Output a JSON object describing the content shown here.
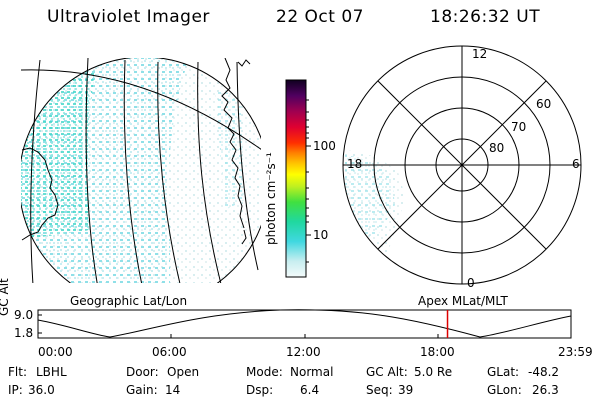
{
  "header": {
    "instrument": "Ultraviolet Imager",
    "date": "22 Oct 07",
    "time": "18:26:32 UT"
  },
  "map": {
    "projection_label": "Geographic Lat/Lon"
  },
  "colorbar": {
    "unit_label": "photon cm⁻²s⁻¹",
    "tick_labels": [
      "100",
      "10"
    ],
    "scale": "log"
  },
  "polar": {
    "label": "Apex MLat/MLT",
    "mlt_labels": {
      "top": "12",
      "left": "18",
      "right": "6",
      "bottom": "0"
    },
    "lat_labels": [
      "60",
      "70",
      "80"
    ]
  },
  "timeline": {
    "y_axis_label": "GC Alt",
    "y_ticks": [
      "9.0",
      "1.8"
    ],
    "x_ticks": [
      "00:00",
      "06:00",
      "12:00",
      "18:00",
      "23:59"
    ],
    "current_time_hours": 18.44,
    "marker_color": "#dd0000"
  },
  "params": {
    "flt_label": "Flt:",
    "flt_value": "LBHL",
    "ip_label": "IP:",
    "ip_value": "36.0",
    "door_label": "Door:",
    "door_value": "Open",
    "gain_label": "Gain:",
    "gain_value": "14",
    "mode_label": "Mode:",
    "mode_value": "Normal",
    "dsp_label": "Dsp:",
    "dsp_value": "6.4",
    "gcalt_label": "GC Alt:",
    "gcalt_value": "5.0 Re",
    "seq_label": "Seq:",
    "seq_value": "39",
    "glat_label": "GLat:",
    "glat_value": "-48.2",
    "glon_label": "GLon:",
    "glon_value": "26.3"
  }
}
